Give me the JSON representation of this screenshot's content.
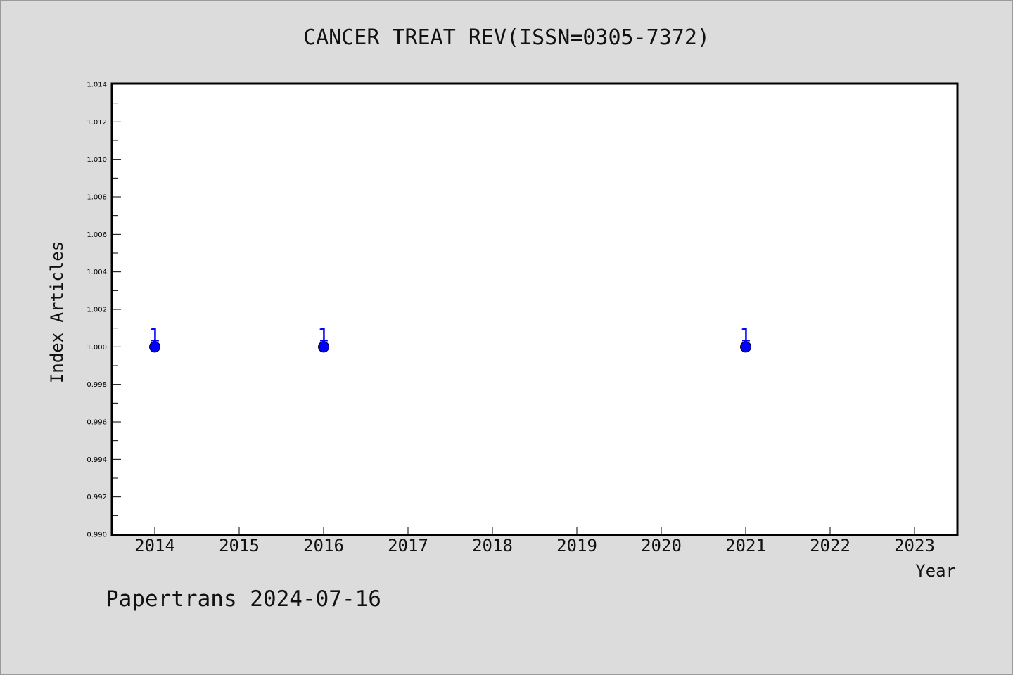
{
  "chart_data": {
    "type": "scatter",
    "title": "CANCER TREAT REV(ISSN=0305-7372)",
    "xlabel": "Year",
    "ylabel": "Index Articles",
    "x_ticks": [
      "2014",
      "2015",
      "2016",
      "2017",
      "2018",
      "2019",
      "2020",
      "2021",
      "2022",
      "2023"
    ],
    "y_ticks": [
      "0.990",
      "0.992",
      "0.994",
      "0.996",
      "0.998",
      "1.000",
      "1.002",
      "1.004",
      "1.006",
      "1.008",
      "1.010",
      "1.012",
      "1.014"
    ],
    "xlim": [
      2013.5,
      2023.5
    ],
    "ylim": [
      0.99,
      1.014
    ],
    "grid": false,
    "series": [
      {
        "x": [
          2014,
          2016,
          2021
        ],
        "y": [
          1,
          1,
          1
        ],
        "labels": [
          "1",
          "1",
          "1"
        ]
      }
    ],
    "marker_color": "#0000ff",
    "label_color": "#0000ff"
  },
  "footer": {
    "text": "Papertrans 2024-07-16"
  }
}
